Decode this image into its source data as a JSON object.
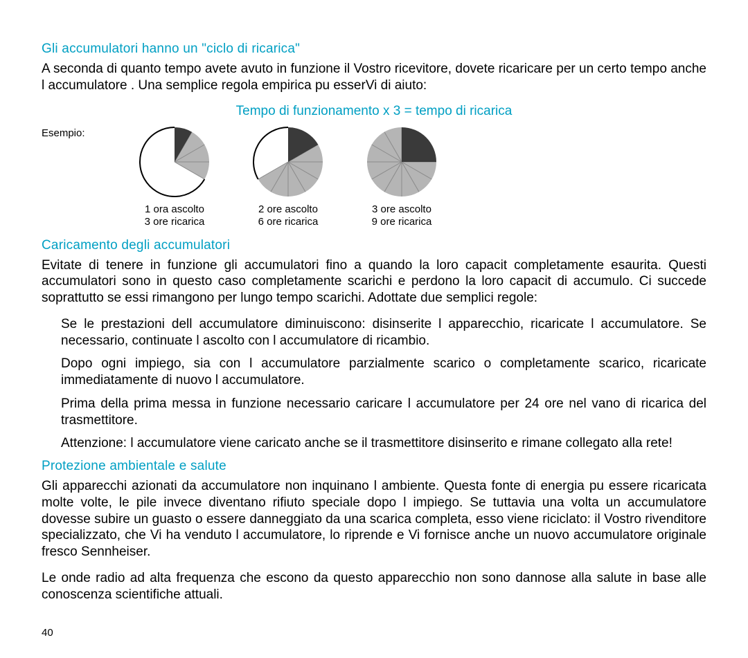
{
  "headings": {
    "h1": "Gli accumulatori hanno un \"ciclo di ricarica\"",
    "rule": "Tempo di funzionamento x 3 = tempo di ricarica",
    "h2": "Caricamento degli accumulatori",
    "h3": "Protezione ambientale e salute"
  },
  "paragraphs": {
    "p1": "A seconda di quanto tempo avete avuto in funzione il Vostro ricevitore, dovete ricaricare per un certo tempo anche l accumulatore . Una semplice  regola empirica  pu  esserVi di aiuto:",
    "p2": "Evitate di tenere in funzione gli accumulatori fino a quando la loro capacit    completamente esaurita. Questi accumulatori sono in questo caso  completamente scarichi  e perdono la loro capacit  di accumulo. Ci  succede soprattutto se essi rimangono per lungo tempo scarichi. Adottate due semplici regole:",
    "b1": "Se le prestazioni dell accumulatore diminuiscono: disinserite l apparecchio, ricaricate l accumulatore. Se necessario, continuate l ascolto con l accumulatore di ricambio.",
    "b2": "Dopo ogni impiego, sia con l accumulatore parzialmente scarico o completamente scarico, ricaricate immediatamente di nuovo l accumulatore.",
    "b3": "Prima della prima messa in funzione   necessario caricare l accumulatore per 24 ore nel vano di ricarica del trasmettitore.",
    "b4": "Attenzione: l accumulatore viene caricato anche se il trasmettitore   disinserito e rimane collegato alla rete!",
    "p3": "Gli apparecchi azionati da accumulatore non inquinano l ambiente. Questa fonte di energia pu  essere ricaricata molte volte, le pile invece diventano rifiuto speciale dopo l impiego. Se tuttavia una volta un accumulatore dovesse subire un guasto o essere danneggiato da una scarica completa, esso viene riciclato: il Vostro rivenditore specializzato, che Vi ha venduto l accumulatore, lo riprende e Vi fornisce anche un nuovo accumulatore originale fresco Sennheiser.",
    "p4": "Le onde radio ad alta frequenza che escono da questo apparecchio non sono dannose alla salute in base alle conoscenza scientifiche attuali."
  },
  "example": {
    "label": "Esempio:",
    "pie_radius": 50,
    "spoke_count": 12,
    "colors": {
      "dark": "#3a3a3a",
      "light": "#b5b5b5",
      "spoke": "#8a8a8a",
      "outline": "#000000",
      "background": "#ffffff"
    },
    "items": [
      {
        "listen_hours": 1,
        "charge_hours": 3,
        "line1": "1 ora ascolto",
        "line2": "3 ore ricarica"
      },
      {
        "listen_hours": 2,
        "charge_hours": 6,
        "line1": "2 ore ascolto",
        "line2": "6 ore ricarica"
      },
      {
        "listen_hours": 3,
        "charge_hours": 9,
        "line1": "3 ore ascolto",
        "line2": "9 ore ricarica"
      }
    ]
  },
  "page_number": "40"
}
